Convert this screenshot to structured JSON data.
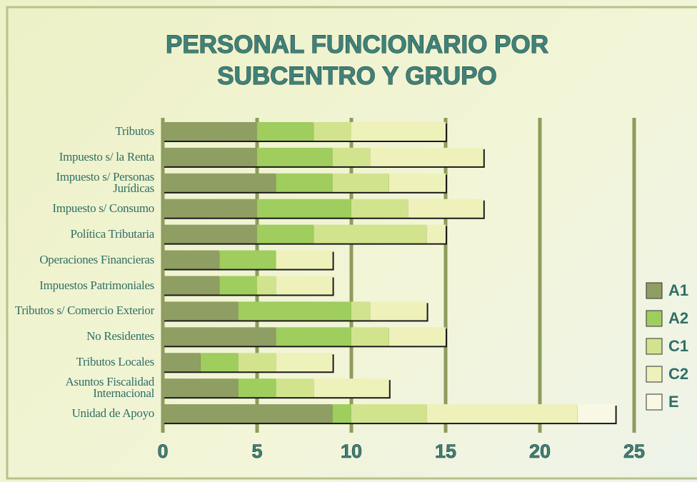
{
  "chart_data": {
    "type": "stacked_barh",
    "title": "PERSONAL FUNCIONARIO POR SUBCENTRO Y GRUPO",
    "categories": [
      "Tributos",
      "Impuesto s/ la Renta",
      "Impuesto s/ Personas Jurídicas",
      "Impuesto s/ Consumo",
      "Política Tributaria",
      "Operaciones Financieras",
      "Impuestos Patrimoniales",
      "Tributos s/ Comercio Exterior",
      "No Residentes",
      "Tributos Locales",
      "Asuntos Fiscalidad Internacional",
      "Unidad de Apoyo"
    ],
    "series": [
      {
        "name": "A1",
        "color": "#8f9e62",
        "values": [
          5,
          5,
          6,
          5,
          5,
          3,
          3,
          4,
          6,
          2,
          4,
          9
        ]
      },
      {
        "name": "A2",
        "color": "#9fcd5e",
        "values": [
          3,
          4,
          3,
          5,
          3,
          3,
          2,
          6,
          4,
          2,
          2,
          1
        ]
      },
      {
        "name": "C1",
        "color": "#d2e38e",
        "values": [
          2,
          2,
          3,
          3,
          6,
          0,
          1,
          1,
          2,
          2,
          2,
          4
        ]
      },
      {
        "name": "C2",
        "color": "#eef1b9",
        "values": [
          5,
          6,
          3,
          4,
          1,
          3,
          3,
          3,
          3,
          3,
          4,
          8
        ]
      },
      {
        "name": "E",
        "color": "#f8f8e4",
        "values": [
          0,
          0,
          0,
          0,
          0,
          0,
          0,
          0,
          0,
          0,
          0,
          2
        ]
      }
    ],
    "xlim": [
      0,
      25
    ],
    "xticks": [
      0,
      5,
      10,
      15,
      20,
      25
    ],
    "grid": true,
    "legend": "right"
  }
}
